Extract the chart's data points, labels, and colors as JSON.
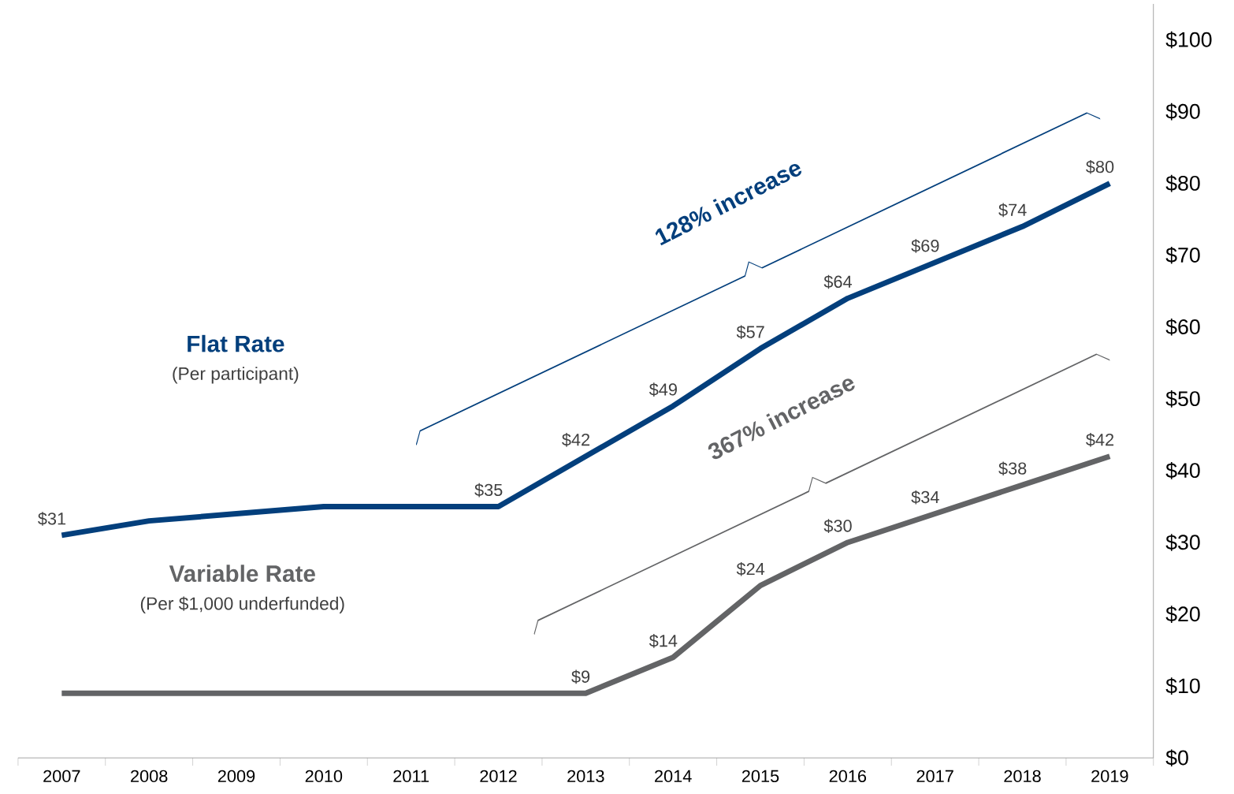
{
  "chart_data": {
    "type": "line",
    "categories": [
      "2007",
      "2008",
      "2009",
      "2010",
      "2011",
      "2012",
      "2013",
      "2014",
      "2015",
      "2016",
      "2017",
      "2018",
      "2019"
    ],
    "series": [
      {
        "name": "Flat Rate",
        "color": "#033f7c",
        "values": [
          31,
          33,
          34,
          35,
          35,
          35,
          42,
          49,
          57,
          64,
          69,
          74,
          80
        ],
        "value_labels": [
          "$31",
          null,
          null,
          null,
          null,
          "$35",
          "$42",
          "$49",
          "$57",
          "$64",
          "$69",
          "$74",
          "$80"
        ]
      },
      {
        "name": "Variable Rate",
        "color": "#636466",
        "values": [
          9,
          9,
          9,
          9,
          9,
          9,
          9,
          14,
          24,
          30,
          34,
          38,
          42
        ],
        "value_labels": [
          null,
          null,
          null,
          null,
          null,
          null,
          "$9",
          "$14",
          "$24",
          "$30",
          "$34",
          "$38",
          "$42"
        ]
      }
    ],
    "ylim": [
      0,
      105
    ],
    "yticks": [
      {
        "value": 0,
        "label": "$0"
      },
      {
        "value": 10,
        "label": "$10"
      },
      {
        "value": 20,
        "label": "$20"
      },
      {
        "value": 30,
        "label": "$30"
      },
      {
        "value": 40,
        "label": "$40"
      },
      {
        "value": 50,
        "label": "$50"
      },
      {
        "value": 60,
        "label": "$60"
      },
      {
        "value": 70,
        "label": "$70"
      },
      {
        "value": 80,
        "label": "$80"
      },
      {
        "value": 90,
        "label": "$90"
      },
      {
        "value": 100,
        "label": "$100"
      }
    ],
    "annotations": [
      "(Per participant)",
      "(Per $1,000 underfunded)",
      "128% increase",
      "367% increase"
    ],
    "grid": false,
    "legend": false,
    "marker": "none",
    "line_style": "solid"
  }
}
